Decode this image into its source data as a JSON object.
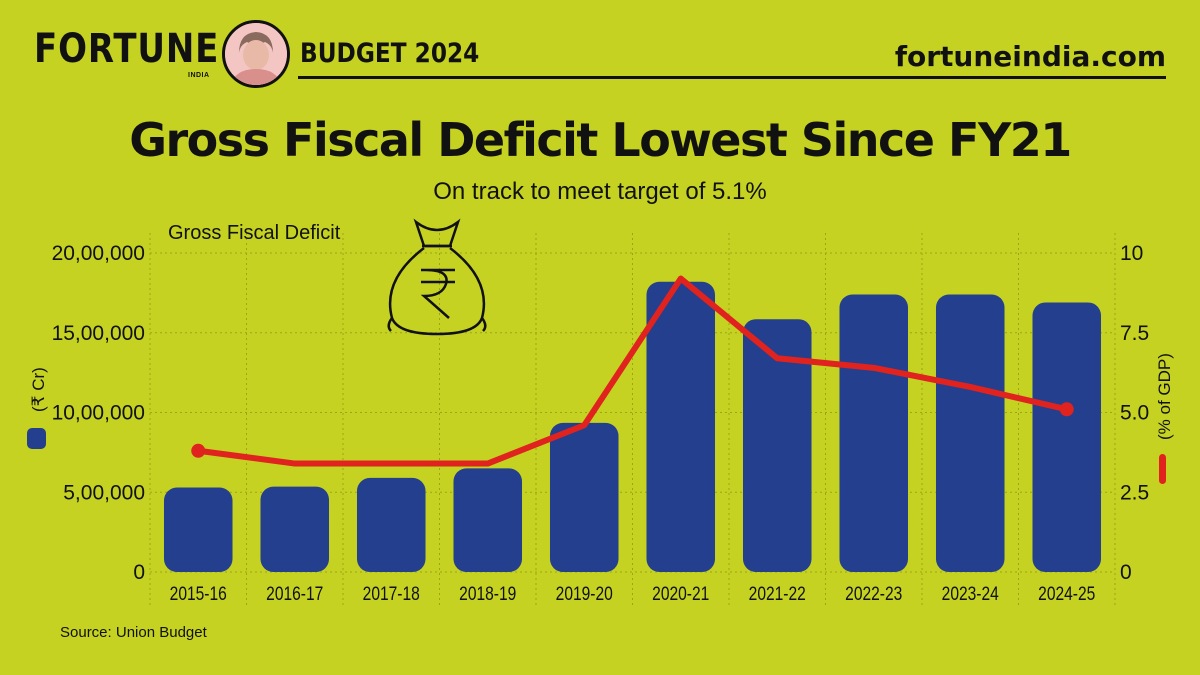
{
  "header": {
    "logo": "FORTUNE",
    "logo_sub": "INDIA",
    "section": "BUDGET 2024",
    "site": "fortuneindia.com"
  },
  "title": "Gross Fiscal Deficit Lowest Since FY21",
  "subtitle": "On track to meet target of 5.1%",
  "source": "Source: Union Budget",
  "colors": {
    "background": "#c5d222",
    "bar": "#233f8e",
    "line": "#e0231e",
    "grid": "#9aa51a"
  },
  "chart_data": {
    "type": "bar",
    "series_label": "Gross Fiscal Deficit",
    "categories": [
      "2015-16",
      "2016-17",
      "2017-18",
      "2018-19",
      "2019-20",
      "2020-21",
      "2021-22",
      "2022-23",
      "2023-24",
      "2024-25"
    ],
    "series": [
      {
        "name": "(₹ Cr)",
        "type": "bar",
        "axis": "left",
        "values": [
          530000,
          535000,
          590000,
          650000,
          935000,
          1820000,
          1585000,
          1740000,
          1740000,
          1690000
        ]
      },
      {
        "name": "(% of GDP)",
        "type": "line",
        "axis": "right",
        "values": [
          3.8,
          3.4,
          3.4,
          3.4,
          4.6,
          9.2,
          6.7,
          6.4,
          5.8,
          5.1
        ]
      }
    ],
    "ylabel_left": "(₹ Cr)",
    "ylabel_right": "(% of GDP)",
    "ylim_left": [
      0,
      2000000
    ],
    "ylim_right": [
      0,
      10
    ],
    "yticks_left": [
      "0",
      "5,00,000",
      "10,00,000",
      "15,00,000",
      "20,00,000"
    ],
    "yticks_right": [
      "0",
      "2.5",
      "5.0",
      "7.5",
      "10"
    ],
    "grid": true
  }
}
